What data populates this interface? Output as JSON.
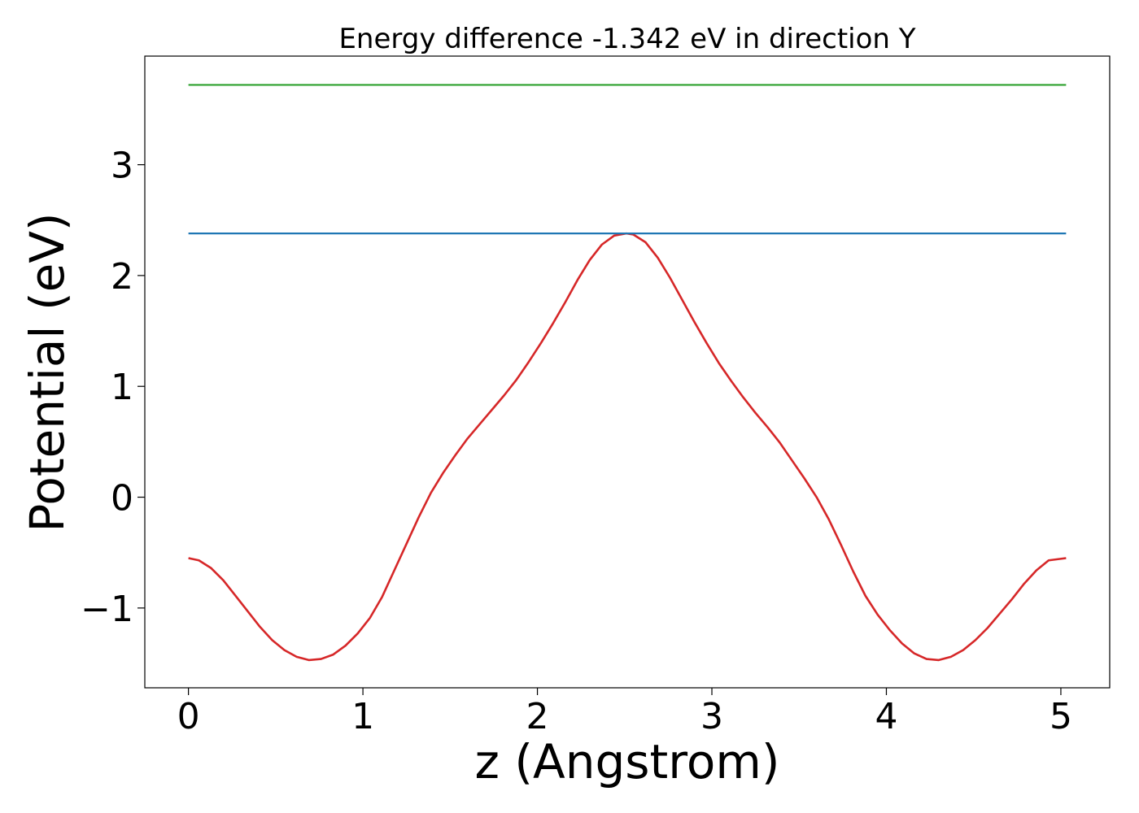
{
  "chart_data": {
    "type": "line",
    "title": "Energy difference -1.342 eV in direction Y",
    "xlabel": "z (Angstrom)",
    "ylabel": "Potential (eV)",
    "xlim": [
      -0.25,
      5.28
    ],
    "ylim": [
      -1.72,
      3.98
    ],
    "x_ticks": [
      0,
      1,
      2,
      3,
      4,
      5
    ],
    "x_tick_labels": [
      "0",
      "1",
      "2",
      "3",
      "4",
      "5"
    ],
    "y_ticks": [
      -1,
      0,
      1,
      2,
      3
    ],
    "y_tick_labels": [
      "−1",
      "0",
      "1",
      "2",
      "3"
    ],
    "grid": false,
    "series": [
      {
        "color": "#d62728",
        "x": [
          0,
          0.06,
          0.13,
          0.2,
          0.27,
          0.34,
          0.41,
          0.48,
          0.55,
          0.62,
          0.69,
          0.76,
          0.83,
          0.9,
          0.97,
          1.04,
          1.11,
          1.18,
          1.25,
          1.32,
          1.39,
          1.46,
          1.53,
          1.6,
          1.67,
          1.74,
          1.81,
          1.88,
          1.95,
          2.02,
          2.09,
          2.16,
          2.23,
          2.3,
          2.37,
          2.44,
          2.51,
          2.55,
          2.62,
          2.69,
          2.76,
          2.83,
          2.9,
          2.97,
          3.04,
          3.11,
          3.18,
          3.25,
          3.32,
          3.39,
          3.46,
          3.53,
          3.6,
          3.67,
          3.74,
          3.81,
          3.88,
          3.95,
          4.02,
          4.09,
          4.16,
          4.23,
          4.3,
          4.37,
          4.44,
          4.51,
          4.58,
          4.65,
          4.72,
          4.79,
          4.86,
          4.93,
          5.03
        ],
        "y": [
          -0.55,
          -0.57,
          -0.64,
          -0.75,
          -0.89,
          -1.03,
          -1.17,
          -1.29,
          -1.38,
          -1.44,
          -1.47,
          -1.46,
          -1.42,
          -1.34,
          -1.23,
          -1.09,
          -0.9,
          -0.66,
          -0.42,
          -0.18,
          0.04,
          0.22,
          0.38,
          0.53,
          0.66,
          0.79,
          0.92,
          1.06,
          1.22,
          1.39,
          1.57,
          1.76,
          1.96,
          2.14,
          2.28,
          2.36,
          2.38,
          2.37,
          2.3,
          2.16,
          1.98,
          1.78,
          1.58,
          1.39,
          1.21,
          1.05,
          0.9,
          0.76,
          0.63,
          0.49,
          0.33,
          0.17,
          0.0,
          -0.2,
          -0.43,
          -0.67,
          -0.89,
          -1.06,
          -1.2,
          -1.32,
          -1.41,
          -1.46,
          -1.47,
          -1.44,
          -1.38,
          -1.29,
          -1.18,
          -1.05,
          -0.92,
          -0.78,
          -0.66,
          -0.57,
          -0.55
        ]
      },
      {
        "color": "#1f77b4",
        "x": [
          0,
          5.03
        ],
        "y": [
          2.38,
          2.38
        ]
      },
      {
        "color": "#2ca02c",
        "x": [
          0,
          5.03
        ],
        "y": [
          3.72,
          3.72
        ]
      }
    ]
  }
}
